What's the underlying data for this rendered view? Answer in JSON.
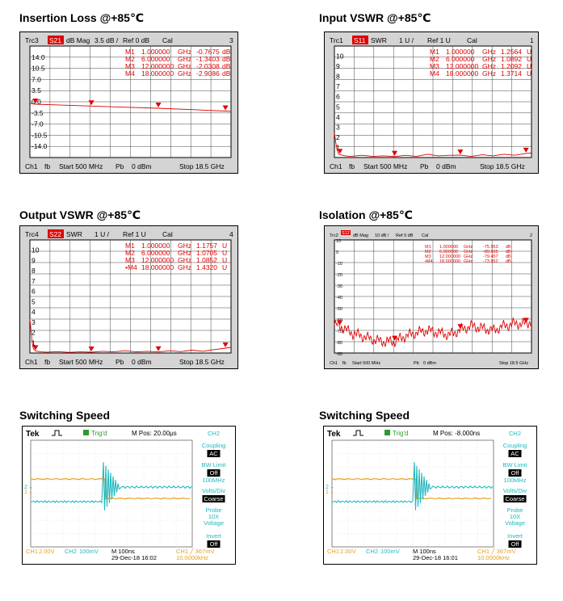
{
  "chart_data": [
    {
      "type": "line",
      "title": "Insertion Loss @+85℃",
      "trace": "Trc3",
      "param": "S21",
      "format": "dB Mag",
      "scale": "3.5 dB /",
      "ref": "Ref 0 dB",
      "cal": "Cal",
      "channel_no": "3",
      "ylim": [
        -17.5,
        17.5
      ],
      "yticks": [
        "14.0",
        "10.5",
        "7.0",
        "3.5",
        "0.0",
        "-3.5",
        "-7.0",
        "-10.5",
        "-14.0"
      ],
      "markers": [
        {
          "id": "M1",
          "freq": "1.000000",
          "unit": "GHz",
          "value": "-0.7675",
          "vunit": "dB",
          "x": 1,
          "y": -0.77
        },
        {
          "id": "M2",
          "freq": "6.000000",
          "unit": "GHz",
          "value": "-1.3403",
          "vunit": "dB",
          "x": 6,
          "y": -1.34
        },
        {
          "id": "M3",
          "freq": "12.000000",
          "unit": "GHz",
          "value": "-2.0308",
          "vunit": "dB",
          "x": 12,
          "y": -2.03
        },
        {
          "id": "M4",
          "freq": "18.000000",
          "unit": "GHz",
          "value": "-2.9086",
          "vunit": "dB",
          "x": 18,
          "y": -2.91
        }
      ],
      "series": [
        {
          "x": [
            0.5,
            1,
            3,
            6,
            9,
            12,
            15,
            18,
            18.5
          ],
          "y": [
            -0.5,
            -0.77,
            -1.0,
            -1.34,
            -1.7,
            -2.03,
            -2.45,
            -2.91,
            -3.0
          ]
        }
      ],
      "footer": {
        "ch": "Ch1",
        "fb": "fb",
        "start": "Start 500 MHz",
        "pb": "Pb",
        "power": "0 dBm",
        "stop": "Stop 18.5 GHz"
      }
    },
    {
      "type": "line",
      "title": "Input VSWR @+85℃",
      "trace": "Trc1",
      "param": "S11",
      "format": "SWR",
      "scale": "1 U /",
      "ref": "Ref 1 U",
      "cal": "Cal",
      "channel_no": "1",
      "ylim": [
        1,
        11
      ],
      "yticks": [
        "10",
        "9",
        "8",
        "7",
        "6",
        "5",
        "4",
        "3",
        "2",
        "1"
      ],
      "markers": [
        {
          "id": "M1",
          "freq": "1.000000",
          "unit": "GHz",
          "value": "1.2564",
          "vunit": "U",
          "x": 1,
          "y": 1.26
        },
        {
          "id": "M2",
          "freq": "6.000000",
          "unit": "GHz",
          "value": "1.0892",
          "vunit": "U",
          "x": 6,
          "y": 1.09
        },
        {
          "id": "M3",
          "freq": "12.000000",
          "unit": "GHz",
          "value": "1.2092",
          "vunit": "U",
          "x": 12,
          "y": 1.21
        },
        {
          "id": "M4",
          "freq": "18.000000",
          "unit": "GHz",
          "value": "1.3714",
          "vunit": "U",
          "x": 18,
          "y": 1.37
        }
      ],
      "series": [
        {
          "x": [
            0.5,
            0.6,
            0.7,
            0.8,
            0.9,
            1,
            1.5,
            2,
            3,
            4,
            5,
            6,
            7,
            8,
            9,
            10,
            11,
            12,
            13,
            14,
            15,
            16,
            17,
            18,
            18.5
          ],
          "y": [
            3.2,
            2.5,
            1.9,
            1.5,
            1.3,
            1.26,
            1.15,
            1.1,
            1.2,
            1.1,
            1.15,
            1.09,
            1.2,
            1.1,
            1.3,
            1.15,
            1.2,
            1.21,
            1.1,
            1.25,
            1.15,
            1.3,
            1.2,
            1.37,
            1.4
          ]
        }
      ],
      "footer": {
        "ch": "Ch1",
        "fb": "fb",
        "start": "Start 500 MHz",
        "pb": "Pb",
        "power": "0 dBm",
        "stop": "Stop 18.5 GHz"
      }
    },
    {
      "type": "line",
      "title": "Output VSWR @+85℃",
      "trace": "Trc4",
      "param": "S22",
      "format": "SWR",
      "scale": "1 U /",
      "ref": "Ref 1 U",
      "cal": "Cal",
      "channel_no": "4",
      "ylim": [
        1,
        11
      ],
      "yticks": [
        "10",
        "9",
        "8",
        "7",
        "6",
        "5",
        "4",
        "3",
        "2",
        "1"
      ],
      "markers": [
        {
          "id": "M1",
          "freq": "1.000000",
          "unit": "GHz",
          "value": "1.1757",
          "vunit": "U",
          "x": 1,
          "y": 1.18
        },
        {
          "id": "M2",
          "freq": "6.000000",
          "unit": "GHz",
          "value": "1.0705",
          "vunit": "U",
          "x": 6,
          "y": 1.07
        },
        {
          "id": "M3",
          "freq": "12.000000",
          "unit": "GHz",
          "value": "1.0852",
          "vunit": "U",
          "x": 12,
          "y": 1.09
        },
        {
          "id": "•M4",
          "freq": "18.000000",
          "unit": "GHz",
          "value": "1.4320",
          "vunit": "U",
          "x": 18,
          "y": 1.43
        }
      ],
      "series": [
        {
          "x": [
            0.5,
            0.6,
            0.7,
            0.8,
            1,
            1.5,
            2,
            3,
            4,
            5,
            6,
            7,
            8,
            9,
            10,
            11,
            12,
            13,
            14,
            15,
            16,
            17,
            18,
            18.5
          ],
          "y": [
            4.0,
            3.0,
            2.0,
            1.4,
            1.18,
            1.1,
            1.08,
            1.12,
            1.06,
            1.1,
            1.07,
            1.15,
            1.1,
            1.2,
            1.1,
            1.15,
            1.09,
            1.2,
            1.12,
            1.25,
            1.15,
            1.3,
            1.43,
            1.5
          ]
        }
      ],
      "footer": {
        "ch": "Ch1",
        "fb": "fb",
        "start": "Start 500 MHz",
        "pb": "Pb",
        "power": "0 dBm",
        "stop": "Stop 18.5 GHz"
      }
    },
    {
      "type": "line",
      "title": "Isolation @+85℃",
      "trace": "Trc2",
      "param": "S12",
      "format": "dB Mag",
      "scale": "10 dB /",
      "ref": "Ref 0 dB",
      "cal": "Cal",
      "channel_no": "2",
      "ylim": [
        -100,
        0
      ],
      "yticks": [
        "10",
        "0",
        "-10",
        "-20",
        "-30",
        "-40",
        "-50",
        "-60",
        "-70",
        "-80",
        "-90"
      ],
      "markers": [
        {
          "id": "M1",
          "freq": "1.000000",
          "unit": "GHz",
          "value": "-75.953",
          "vunit": "dB",
          "x": 1,
          "y": -75.95
        },
        {
          "id": "M2",
          "freq": "6.000000",
          "unit": "GHz",
          "value": "-89.695",
          "vunit": "dB",
          "x": 6,
          "y": -89.7
        },
        {
          "id": "M3",
          "freq": "12.000000",
          "unit": "GHz",
          "value": "-79.457",
          "vunit": "dB",
          "x": 12,
          "y": -79.46
        },
        {
          "id": "•M4",
          "freq": "18.000000",
          "unit": "GHz",
          "value": "-73.952",
          "vunit": "dB",
          "x": 18,
          "y": -73.95
        }
      ],
      "series": [
        {
          "x": [
            0.5,
            1,
            2,
            3,
            4,
            5,
            6,
            7,
            8,
            9,
            10,
            11,
            12,
            13,
            14,
            15,
            16,
            17,
            18,
            18.5
          ],
          "y": [
            -75,
            -76,
            -82,
            -85,
            -88,
            -90,
            -89.7,
            -85,
            -82,
            -80,
            -82,
            -84,
            -79.5,
            -76,
            -78,
            -80,
            -76,
            -74,
            -74,
            -72
          ]
        }
      ],
      "footer": {
        "ch": "Ch1",
        "fb": "fb",
        "start": "Start 500 MHz",
        "pb": "Pb",
        "power": "0 dBm",
        "stop": "Stop 18.5 GHz"
      }
    },
    {
      "type": "line",
      "title": "Switching Speed",
      "brand": "Tek",
      "trig": "Trig'd",
      "mpos": "M Pos: 20.00μs",
      "side": {
        "ch": "CH2",
        "coupling": "Coupling",
        "coupling_val": "AC",
        "bwlimit": "BW Limit",
        "bwlimit_val": "Off",
        "bwlimit_sub": "100MHz",
        "voltsdiv": "Volts/Div",
        "voltsdiv_val": "Coarse",
        "probe": "Probe",
        "probe_x": "10X",
        "probe_v": "Voltage",
        "invert": "Invert",
        "invert_val": "Off"
      },
      "bottom": {
        "ch1": "CH1",
        "ch1v": "2.00V",
        "ch2": "CH2",
        "ch2v": "100mV",
        "time": "M 100ns",
        "date": "29-Dec-18 16:02",
        "trig": "CH1 ╱ 367mV",
        "freq": "10.0000kHz"
      },
      "step_x": 0.46
    },
    {
      "type": "line",
      "title": "Switching Speed",
      "brand": "Tek",
      "trig": "Trig'd",
      "mpos": "M Pos: -8.000ns",
      "side": {
        "ch": "CH2",
        "coupling": "Coupling",
        "coupling_val": "AC",
        "bwlimit": "BW Limit",
        "bwlimit_val": "Off",
        "bwlimit_sub": "100MHz",
        "voltsdiv": "Volts/Div",
        "voltsdiv_val": "Coarse",
        "probe": "Probe",
        "probe_x": "10X",
        "probe_v": "Voltage",
        "invert": "Invert",
        "invert_val": "Off"
      },
      "bottom": {
        "ch1": "CH1",
        "ch1v": "2.00V",
        "ch2": "CH2",
        "ch2v": "100mV",
        "time": "M 100ns",
        "date": "29-Dec-18 16:01",
        "trig": "CH1 ╱ 367mV",
        "freq": "10.0000kHz"
      },
      "step_x": 0.52
    }
  ]
}
